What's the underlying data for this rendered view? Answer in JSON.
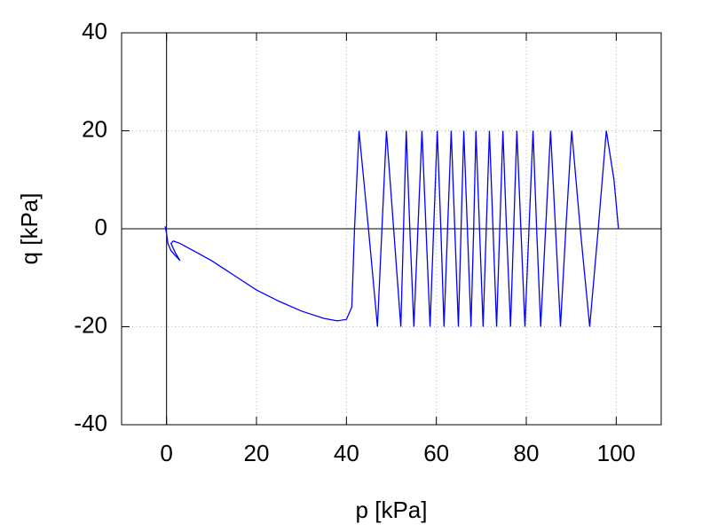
{
  "chart_data": {
    "type": "line",
    "xlabel": "p [kPa]",
    "ylabel": "q [kPa]",
    "x": [
      -0.3,
      0,
      0.3,
      1,
      2,
      3,
      2,
      1,
      1.5,
      3,
      6,
      10,
      15,
      20,
      25,
      30,
      35,
      38,
      40,
      41.2,
      41.8,
      42.8,
      44.9,
      46.9,
      47.9,
      48.9,
      50.5,
      52.1,
      52.7,
      53.3,
      54.1,
      55.0,
      55.9,
      56.8,
      57.7,
      58.6,
      59.4,
      60.2,
      61.0,
      61.7,
      62.5,
      63.3,
      64.1,
      64.9,
      65.5,
      66.1,
      66.9,
      67.7,
      68.3,
      68.8,
      69.6,
      70.4,
      71.1,
      71.8,
      72.6,
      73.4,
      74.1,
      74.8,
      75.6,
      76.5,
      77.2,
      77.9,
      78.8,
      79.7,
      80.6,
      81.5,
      82.3,
      83.2,
      84.3,
      85.4,
      86.5,
      87.6,
      88.8,
      90.1,
      92.0,
      94.1,
      96.0,
      97.8,
      99.5,
      100.5
    ],
    "series": [
      {
        "color": "#0000ff",
        "values": [
          0.5,
          -1,
          -3,
          -4.5,
          -5.5,
          -6.5,
          -5,
          -3,
          -2.5,
          -3,
          -4.5,
          -6.5,
          -9.5,
          -12.5,
          -14.8,
          -16.8,
          -18.3,
          -18.8,
          -18.5,
          -16,
          0,
          20,
          0,
          -20,
          0,
          20,
          0,
          -20,
          0,
          20,
          0,
          -20,
          0,
          20,
          0,
          -20,
          0,
          20,
          0,
          -20,
          0,
          20,
          0,
          -20,
          0,
          20,
          0,
          -20,
          0,
          20,
          0,
          -20,
          0,
          20,
          0,
          -20,
          0,
          20,
          0,
          -20,
          0,
          20,
          0,
          -20,
          0,
          20,
          0,
          -20,
          0,
          20,
          0,
          -20,
          0,
          20,
          0,
          -20,
          0,
          20,
          10,
          0
        ]
      }
    ],
    "xlim": [
      -10,
      110
    ],
    "ylim": [
      -40,
      40
    ],
    "xticks": [
      0,
      20,
      40,
      60,
      80,
      100
    ],
    "yticks": [
      -40,
      -20,
      0,
      20,
      40
    ],
    "grid": true,
    "zeroaxis": true
  }
}
